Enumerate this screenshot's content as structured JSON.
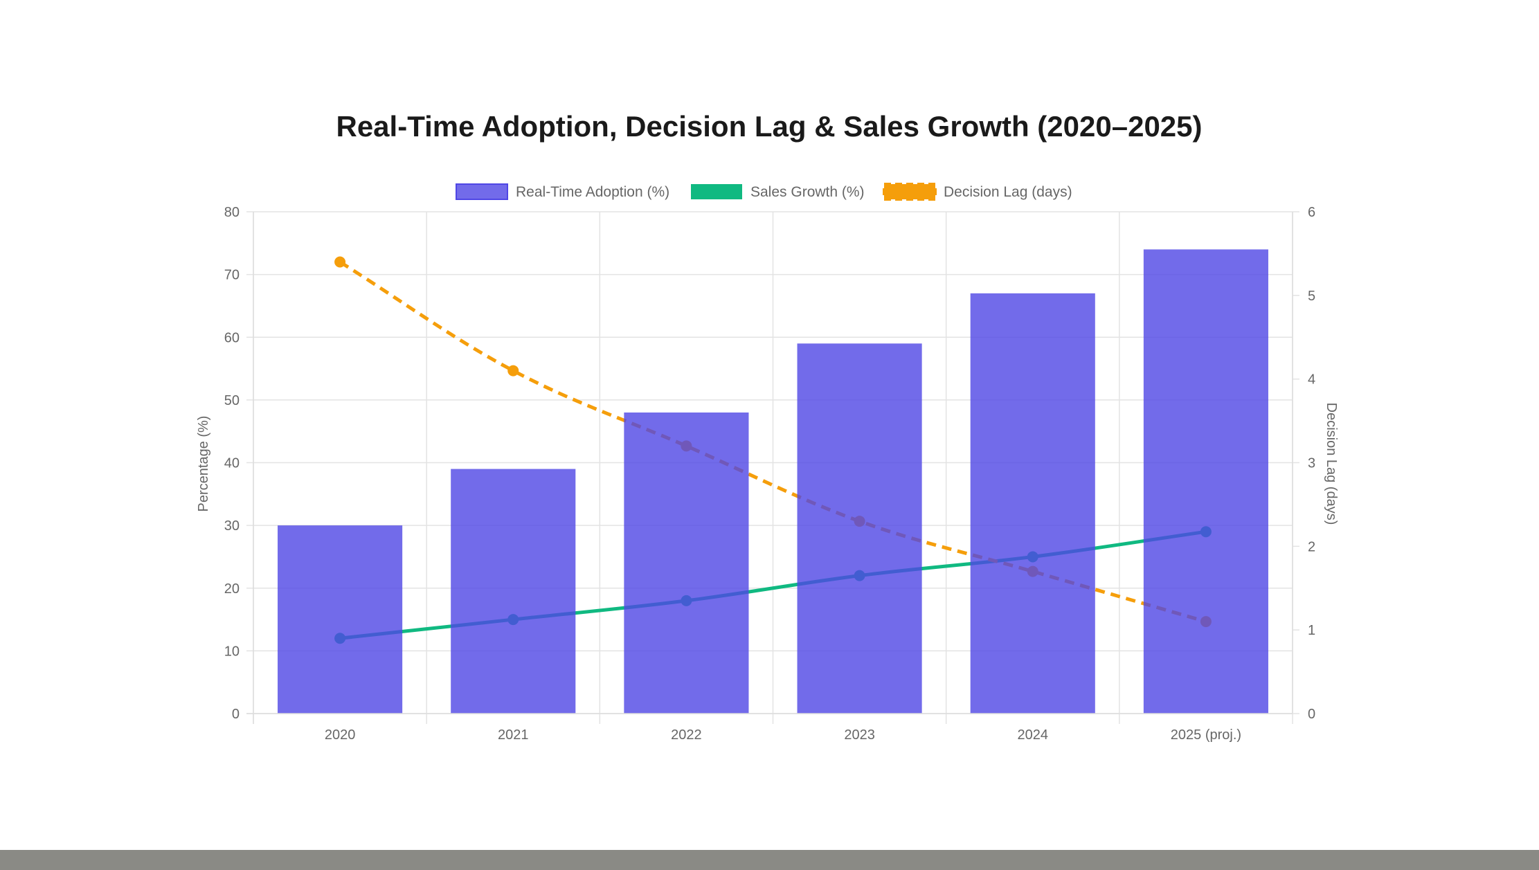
{
  "chart_data": {
    "type": "bar",
    "title": "Real-Time Adoption, Decision Lag & Sales Growth (2020–2025)",
    "categories": [
      "2020",
      "2021",
      "2022",
      "2023",
      "2024",
      "2025 (proj.)"
    ],
    "series": [
      {
        "name": "Real-Time Adoption (%)",
        "type": "bar",
        "axis": "left",
        "color": "#4f46e5",
        "values": [
          30,
          39,
          48,
          59,
          67,
          74
        ]
      },
      {
        "name": "Sales Growth (%)",
        "type": "line",
        "axis": "left",
        "color": "#10b981",
        "values": [
          12,
          15,
          18,
          22,
          25,
          29
        ]
      },
      {
        "name": "Decision Lag (days)",
        "type": "line",
        "dashed": true,
        "axis": "right",
        "color": "#f59e0b",
        "values": [
          5.4,
          4.1,
          3.2,
          2.3,
          1.7,
          1.1
        ]
      }
    ],
    "ylabel": "Percentage (%)",
    "y2label": "Decision Lag (days)",
    "ylim": [
      0,
      80
    ],
    "y2lim": [
      0,
      6
    ],
    "yticks": [
      0,
      10,
      20,
      30,
      40,
      50,
      60,
      70,
      80
    ],
    "y2ticks": [
      0,
      1,
      2,
      3,
      4,
      5,
      6
    ],
    "grid": true,
    "legend": "top"
  }
}
